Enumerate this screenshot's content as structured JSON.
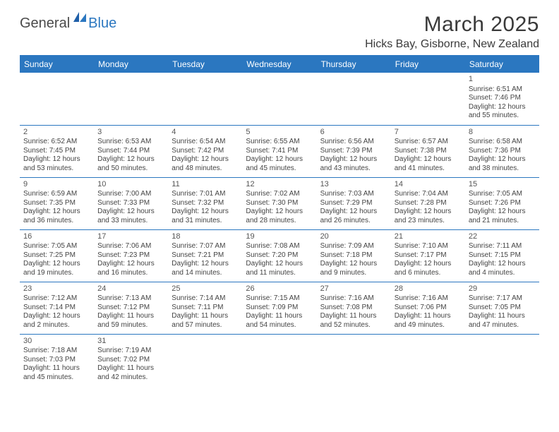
{
  "logo": {
    "part1": "General",
    "part2": "Blue"
  },
  "title": "March 2025",
  "location": "Hicks Bay, Gisborne, New Zealand",
  "colors": {
    "header_bg": "#2b77c0",
    "header_text": "#ffffff",
    "divider": "#2b77c0",
    "text": "#444444",
    "title_text": "#3a3a3a"
  },
  "fonts": {
    "title_size": 30,
    "location_size": 16,
    "dayhead_size": 12,
    "cell_size": 10
  },
  "day_headers": [
    "Sunday",
    "Monday",
    "Tuesday",
    "Wednesday",
    "Thursday",
    "Friday",
    "Saturday"
  ],
  "weeks": [
    [
      null,
      null,
      null,
      null,
      null,
      null,
      {
        "n": "1",
        "sr": "Sunrise: 6:51 AM",
        "ss": "Sunset: 7:46 PM",
        "d1": "Daylight: 12 hours",
        "d2": "and 55 minutes."
      }
    ],
    [
      {
        "n": "2",
        "sr": "Sunrise: 6:52 AM",
        "ss": "Sunset: 7:45 PM",
        "d1": "Daylight: 12 hours",
        "d2": "and 53 minutes."
      },
      {
        "n": "3",
        "sr": "Sunrise: 6:53 AM",
        "ss": "Sunset: 7:44 PM",
        "d1": "Daylight: 12 hours",
        "d2": "and 50 minutes."
      },
      {
        "n": "4",
        "sr": "Sunrise: 6:54 AM",
        "ss": "Sunset: 7:42 PM",
        "d1": "Daylight: 12 hours",
        "d2": "and 48 minutes."
      },
      {
        "n": "5",
        "sr": "Sunrise: 6:55 AM",
        "ss": "Sunset: 7:41 PM",
        "d1": "Daylight: 12 hours",
        "d2": "and 45 minutes."
      },
      {
        "n": "6",
        "sr": "Sunrise: 6:56 AM",
        "ss": "Sunset: 7:39 PM",
        "d1": "Daylight: 12 hours",
        "d2": "and 43 minutes."
      },
      {
        "n": "7",
        "sr": "Sunrise: 6:57 AM",
        "ss": "Sunset: 7:38 PM",
        "d1": "Daylight: 12 hours",
        "d2": "and 41 minutes."
      },
      {
        "n": "8",
        "sr": "Sunrise: 6:58 AM",
        "ss": "Sunset: 7:36 PM",
        "d1": "Daylight: 12 hours",
        "d2": "and 38 minutes."
      }
    ],
    [
      {
        "n": "9",
        "sr": "Sunrise: 6:59 AM",
        "ss": "Sunset: 7:35 PM",
        "d1": "Daylight: 12 hours",
        "d2": "and 36 minutes."
      },
      {
        "n": "10",
        "sr": "Sunrise: 7:00 AM",
        "ss": "Sunset: 7:33 PM",
        "d1": "Daylight: 12 hours",
        "d2": "and 33 minutes."
      },
      {
        "n": "11",
        "sr": "Sunrise: 7:01 AM",
        "ss": "Sunset: 7:32 PM",
        "d1": "Daylight: 12 hours",
        "d2": "and 31 minutes."
      },
      {
        "n": "12",
        "sr": "Sunrise: 7:02 AM",
        "ss": "Sunset: 7:30 PM",
        "d1": "Daylight: 12 hours",
        "d2": "and 28 minutes."
      },
      {
        "n": "13",
        "sr": "Sunrise: 7:03 AM",
        "ss": "Sunset: 7:29 PM",
        "d1": "Daylight: 12 hours",
        "d2": "and 26 minutes."
      },
      {
        "n": "14",
        "sr": "Sunrise: 7:04 AM",
        "ss": "Sunset: 7:28 PM",
        "d1": "Daylight: 12 hours",
        "d2": "and 23 minutes."
      },
      {
        "n": "15",
        "sr": "Sunrise: 7:05 AM",
        "ss": "Sunset: 7:26 PM",
        "d1": "Daylight: 12 hours",
        "d2": "and 21 minutes."
      }
    ],
    [
      {
        "n": "16",
        "sr": "Sunrise: 7:05 AM",
        "ss": "Sunset: 7:25 PM",
        "d1": "Daylight: 12 hours",
        "d2": "and 19 minutes."
      },
      {
        "n": "17",
        "sr": "Sunrise: 7:06 AM",
        "ss": "Sunset: 7:23 PM",
        "d1": "Daylight: 12 hours",
        "d2": "and 16 minutes."
      },
      {
        "n": "18",
        "sr": "Sunrise: 7:07 AM",
        "ss": "Sunset: 7:21 PM",
        "d1": "Daylight: 12 hours",
        "d2": "and 14 minutes."
      },
      {
        "n": "19",
        "sr": "Sunrise: 7:08 AM",
        "ss": "Sunset: 7:20 PM",
        "d1": "Daylight: 12 hours",
        "d2": "and 11 minutes."
      },
      {
        "n": "20",
        "sr": "Sunrise: 7:09 AM",
        "ss": "Sunset: 7:18 PM",
        "d1": "Daylight: 12 hours",
        "d2": "and 9 minutes."
      },
      {
        "n": "21",
        "sr": "Sunrise: 7:10 AM",
        "ss": "Sunset: 7:17 PM",
        "d1": "Daylight: 12 hours",
        "d2": "and 6 minutes."
      },
      {
        "n": "22",
        "sr": "Sunrise: 7:11 AM",
        "ss": "Sunset: 7:15 PM",
        "d1": "Daylight: 12 hours",
        "d2": "and 4 minutes."
      }
    ],
    [
      {
        "n": "23",
        "sr": "Sunrise: 7:12 AM",
        "ss": "Sunset: 7:14 PM",
        "d1": "Daylight: 12 hours",
        "d2": "and 2 minutes."
      },
      {
        "n": "24",
        "sr": "Sunrise: 7:13 AM",
        "ss": "Sunset: 7:12 PM",
        "d1": "Daylight: 11 hours",
        "d2": "and 59 minutes."
      },
      {
        "n": "25",
        "sr": "Sunrise: 7:14 AM",
        "ss": "Sunset: 7:11 PM",
        "d1": "Daylight: 11 hours",
        "d2": "and 57 minutes."
      },
      {
        "n": "26",
        "sr": "Sunrise: 7:15 AM",
        "ss": "Sunset: 7:09 PM",
        "d1": "Daylight: 11 hours",
        "d2": "and 54 minutes."
      },
      {
        "n": "27",
        "sr": "Sunrise: 7:16 AM",
        "ss": "Sunset: 7:08 PM",
        "d1": "Daylight: 11 hours",
        "d2": "and 52 minutes."
      },
      {
        "n": "28",
        "sr": "Sunrise: 7:16 AM",
        "ss": "Sunset: 7:06 PM",
        "d1": "Daylight: 11 hours",
        "d2": "and 49 minutes."
      },
      {
        "n": "29",
        "sr": "Sunrise: 7:17 AM",
        "ss": "Sunset: 7:05 PM",
        "d1": "Daylight: 11 hours",
        "d2": "and 47 minutes."
      }
    ],
    [
      {
        "n": "30",
        "sr": "Sunrise: 7:18 AM",
        "ss": "Sunset: 7:03 PM",
        "d1": "Daylight: 11 hours",
        "d2": "and 45 minutes."
      },
      {
        "n": "31",
        "sr": "Sunrise: 7:19 AM",
        "ss": "Sunset: 7:02 PM",
        "d1": "Daylight: 11 hours",
        "d2": "and 42 minutes."
      },
      null,
      null,
      null,
      null,
      null
    ]
  ]
}
